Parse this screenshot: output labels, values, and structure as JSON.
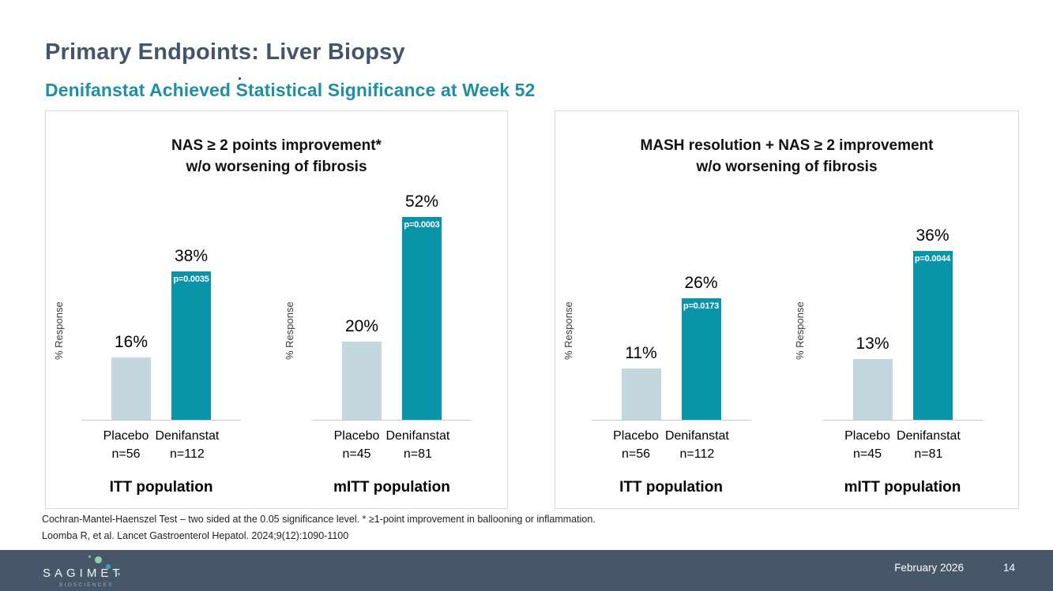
{
  "header": {
    "title": "Primary Endpoints: Liver Biopsy",
    "subtitle": "Denifanstat Achieved Statistical Significance at Week 52"
  },
  "colors": {
    "denifanstat_bar": "#0a94aa",
    "placebo_bar": "#c3d7df",
    "title_text": "#44546a",
    "subtitle_text": "#1e8fa4",
    "footer_background": "#475669",
    "panel_border": "#d8d8d8"
  },
  "chart_data": [
    {
      "type": "bar",
      "title_lines": [
        "NAS ≥ 2 points improvement*",
        "w/o worsening of fibrosis"
      ],
      "ylabel": "% Response",
      "ylim": [
        0,
        60
      ],
      "grid": false,
      "groups": [
        {
          "label": "ITT population",
          "bars": [
            {
              "name": "Placebo",
              "n": "n=56",
              "value": 16,
              "value_label": "16%",
              "p_value": null,
              "color_key": "placebo_bar"
            },
            {
              "name": "Denifanstat",
              "n": "n=112",
              "value": 38,
              "value_label": "38%",
              "p_value": "p=0.0035",
              "color_key": "denifanstat_bar"
            }
          ]
        },
        {
          "label": "mITT population",
          "bars": [
            {
              "name": "Placebo",
              "n": "n=45",
              "value": 20,
              "value_label": "20%",
              "p_value": null,
              "color_key": "placebo_bar"
            },
            {
              "name": "Denifanstat",
              "n": "n=81",
              "value": 52,
              "value_label": "52%",
              "p_value": "p=0.0003",
              "color_key": "denifanstat_bar"
            }
          ]
        }
      ]
    },
    {
      "type": "bar",
      "title_lines": [
        "MASH resolution + NAS ≥ 2 improvement",
        "w/o worsening of fibrosis"
      ],
      "ylabel": "% Response",
      "ylim": [
        0,
        50
      ],
      "grid": false,
      "groups": [
        {
          "label": "ITT population",
          "bars": [
            {
              "name": "Placebo",
              "n": "n=56",
              "value": 11,
              "value_label": "11%",
              "p_value": null,
              "color_key": "placebo_bar"
            },
            {
              "name": "Denifanstat",
              "n": "n=112",
              "value": 26,
              "value_label": "26%",
              "p_value": "p=0.0173",
              "color_key": "denifanstat_bar"
            }
          ]
        },
        {
          "label": "mITT population",
          "bars": [
            {
              "name": "Placebo",
              "n": "n=45",
              "value": 13,
              "value_label": "13%",
              "p_value": null,
              "color_key": "placebo_bar"
            },
            {
              "name": "Denifanstat",
              "n": "n=81",
              "value": 36,
              "value_label": "36%",
              "p_value": "p=0.0044",
              "color_key": "denifanstat_bar"
            }
          ]
        }
      ]
    }
  ],
  "footnotes": {
    "line1": "Cochran-Mantel-Haenszel Test – two sided at the 0.05 significance level. * ≥1-point improvement in ballooning or inflammation.",
    "line2": "Loomba R, et al. Lancet Gastroenterol Hepatol. 2024;9(12):1090-1100"
  },
  "footer": {
    "logo_text": "SAGIMET",
    "logo_subtext": "BIOSCIENCES",
    "date": "February 2026",
    "page": "14"
  }
}
